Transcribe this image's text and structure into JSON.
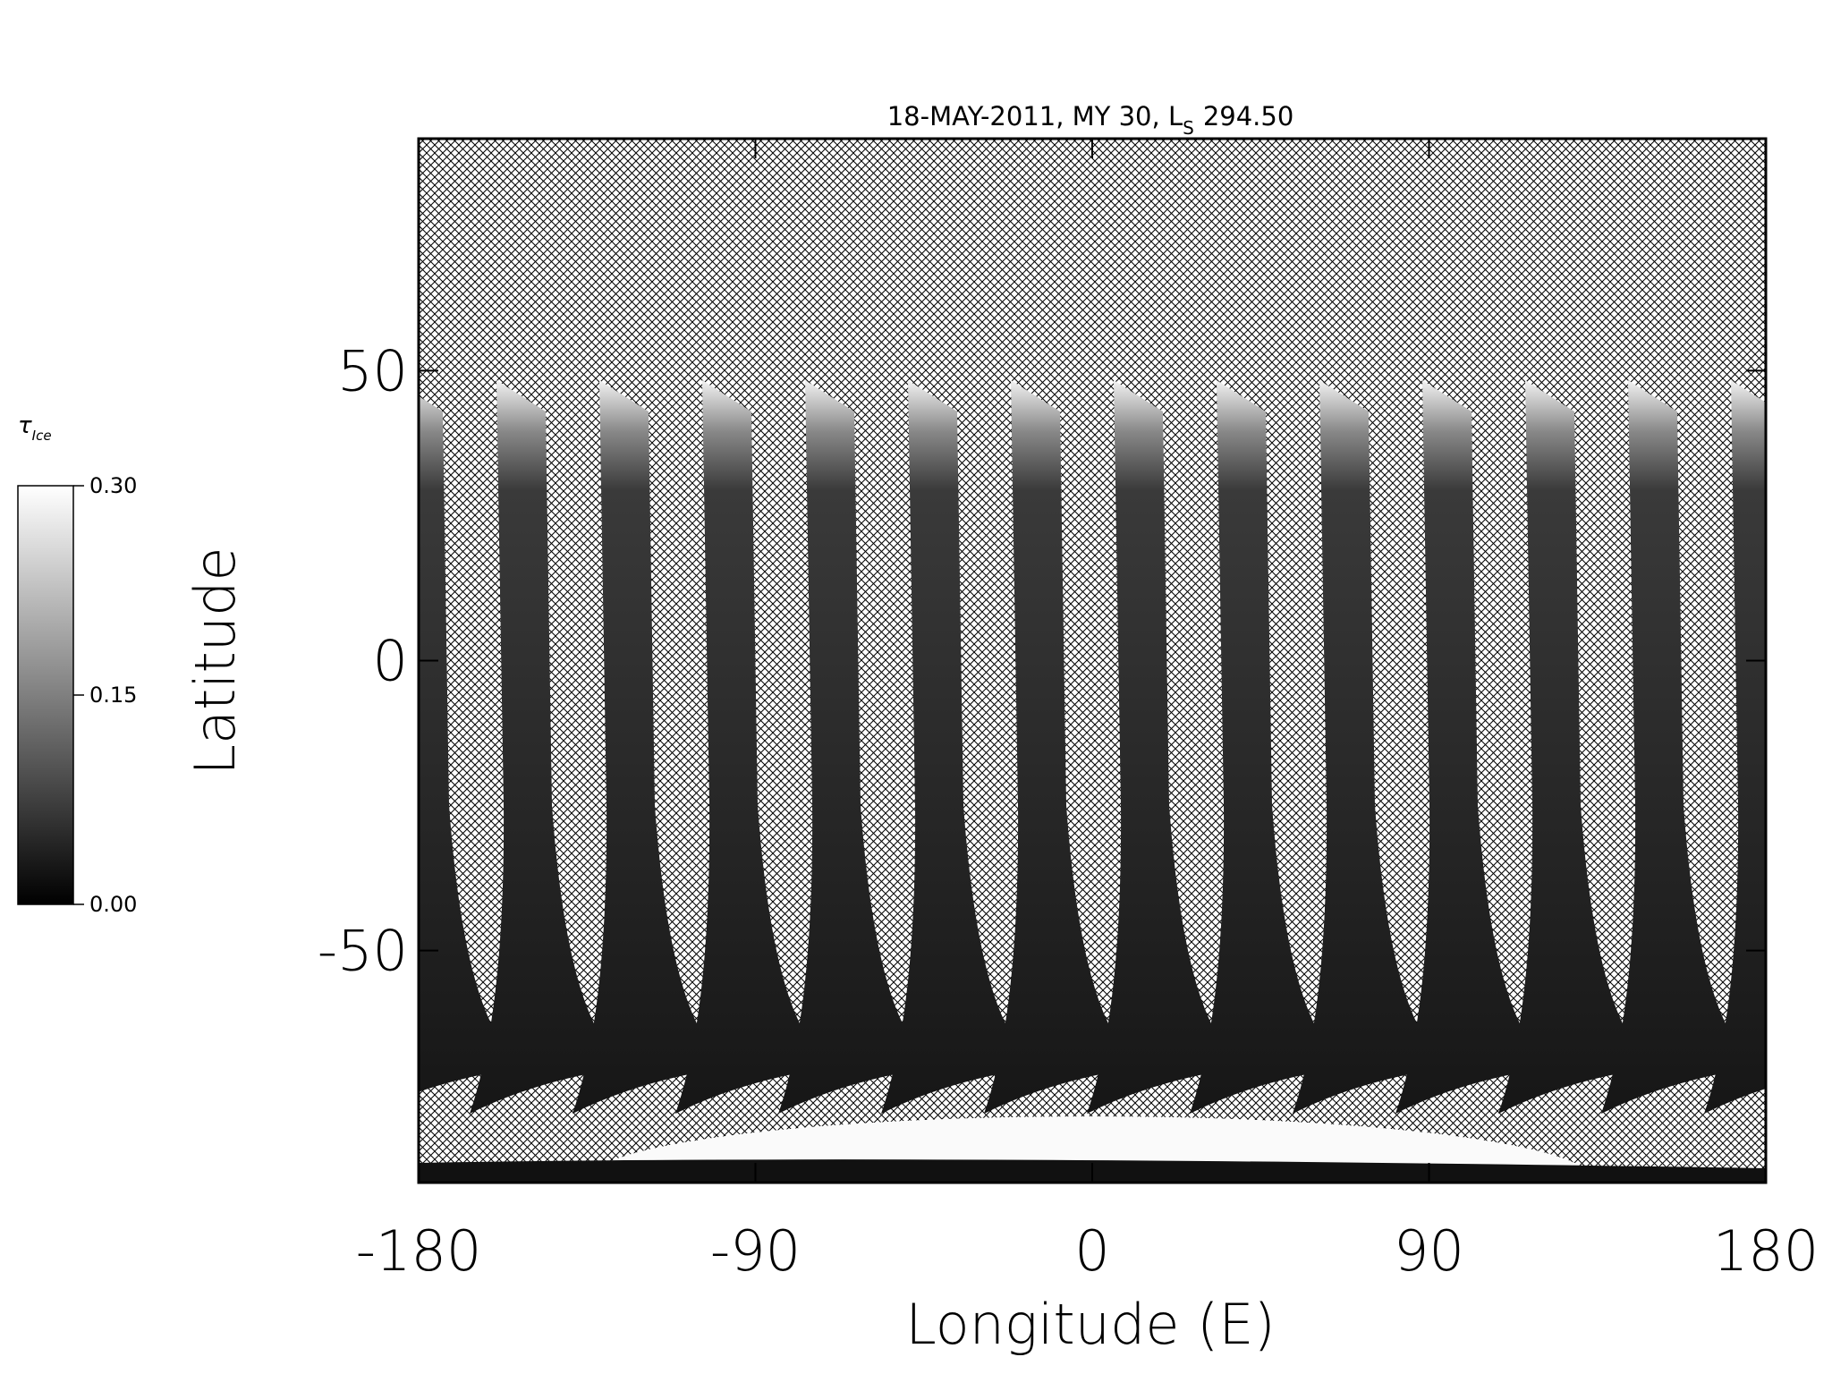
{
  "chart_data": {
    "type": "map",
    "title": {
      "text": "18-MAY-2011, MY 30,  L",
      "subscript": "S",
      "tail": "294.50"
    },
    "x_label": "Longitude (E)",
    "y_label": "Latitude",
    "xlim": [
      -180,
      180
    ],
    "xticks": [
      -180,
      -90,
      0,
      90,
      180
    ],
    "ylim": [
      -90,
      90
    ],
    "yticks": [
      -50,
      0,
      50
    ],
    "colorbar": {
      "label": "τ",
      "label_subscript": "Ice",
      "lim": [
        0,
        0.3
      ],
      "ticks": [
        {
          "value": 0,
          "label": "0.00"
        },
        {
          "value": 0.15,
          "label": "0.15"
        },
        {
          "value": 0.3,
          "label": "0.30"
        }
      ]
    }
  }
}
